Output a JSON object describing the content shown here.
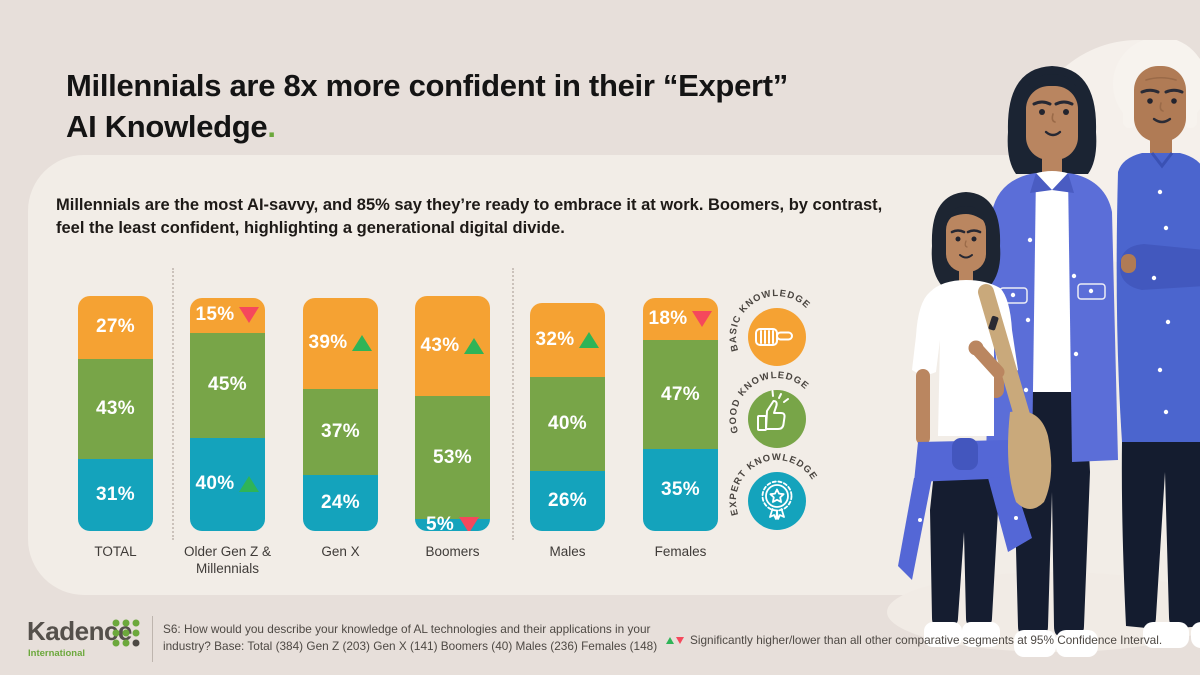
{
  "header": {
    "title_line1": "Millennials are 8x more confident in their “Expert”",
    "title_line2": "AI Knowledge",
    "title_period": ".",
    "subtitle": "Millennials are the most AI-savvy, and 85% say they’re ready to embrace it at work. Boomers, by contrast, feel the least confident, highlighting a generational digital divide."
  },
  "chart_data": {
    "type": "bar",
    "stacked": true,
    "unit": "%",
    "grid": false,
    "ylim": [
      0,
      100
    ],
    "legend_position": "right",
    "categories": [
      "TOTAL",
      "Older Gen Z & Millennials",
      "Gen X",
      "Boomers",
      "Males",
      "Females"
    ],
    "series": [
      {
        "name": "Expert Knowledge",
        "color": "#14A3BC",
        "values": [
          31,
          40,
          24,
          5,
          26,
          35
        ]
      },
      {
        "name": "Good Knowledge",
        "color": "#78A548",
        "values": [
          43,
          45,
          37,
          53,
          40,
          47
        ]
      },
      {
        "name": "Basic Knowledge",
        "color": "#F5A233",
        "values": [
          27,
          15,
          39,
          43,
          32,
          18
        ]
      }
    ],
    "significance_markers": [
      {
        "category": "Older Gen Z & Millennials",
        "series": "Basic Knowledge",
        "direction": "lower"
      },
      {
        "category": "Older Gen Z & Millennials",
        "series": "Expert Knowledge",
        "direction": "higher"
      },
      {
        "category": "Gen X",
        "series": "Basic Knowledge",
        "direction": "higher"
      },
      {
        "category": "Boomers",
        "series": "Basic Knowledge",
        "direction": "higher"
      },
      {
        "category": "Boomers",
        "series": "Expert Knowledge",
        "direction": "lower"
      },
      {
        "category": "Males",
        "series": "Basic Knowledge",
        "direction": "higher"
      },
      {
        "category": "Females",
        "series": "Basic Knowledge",
        "direction": "lower"
      }
    ]
  },
  "legend": {
    "items": [
      {
        "label": "BASIC KNOWLEDGE",
        "color": "#F5A233",
        "icon": "pointing-fist-icon"
      },
      {
        "label": "GOOD KNOWLEDGE",
        "color": "#78A548",
        "icon": "thumbs-up-icon"
      },
      {
        "label": "EXPERT KNOWLEDGE",
        "color": "#14A3BC",
        "icon": "award-rosette-icon"
      }
    ]
  },
  "footer": {
    "logo_text": "Kadence",
    "logo_subtext": "International",
    "note_line": "S6: How would you describe your knowledge of AL technologies and their applications in your industry? Base: Total (384) Gen Z (203) Gen X (141) Boomers (40) Males (236) Females (148)",
    "significance_note": "Significantly higher/lower than all other comparative segments at 95% Confidence Interval."
  },
  "colors": {
    "page_background": "#E7DFDA",
    "panel_background": "#F2EDE7",
    "accent_green": "#6CA83C",
    "up_triangle": "#2FB457",
    "down_triangle": "#F5485C"
  }
}
